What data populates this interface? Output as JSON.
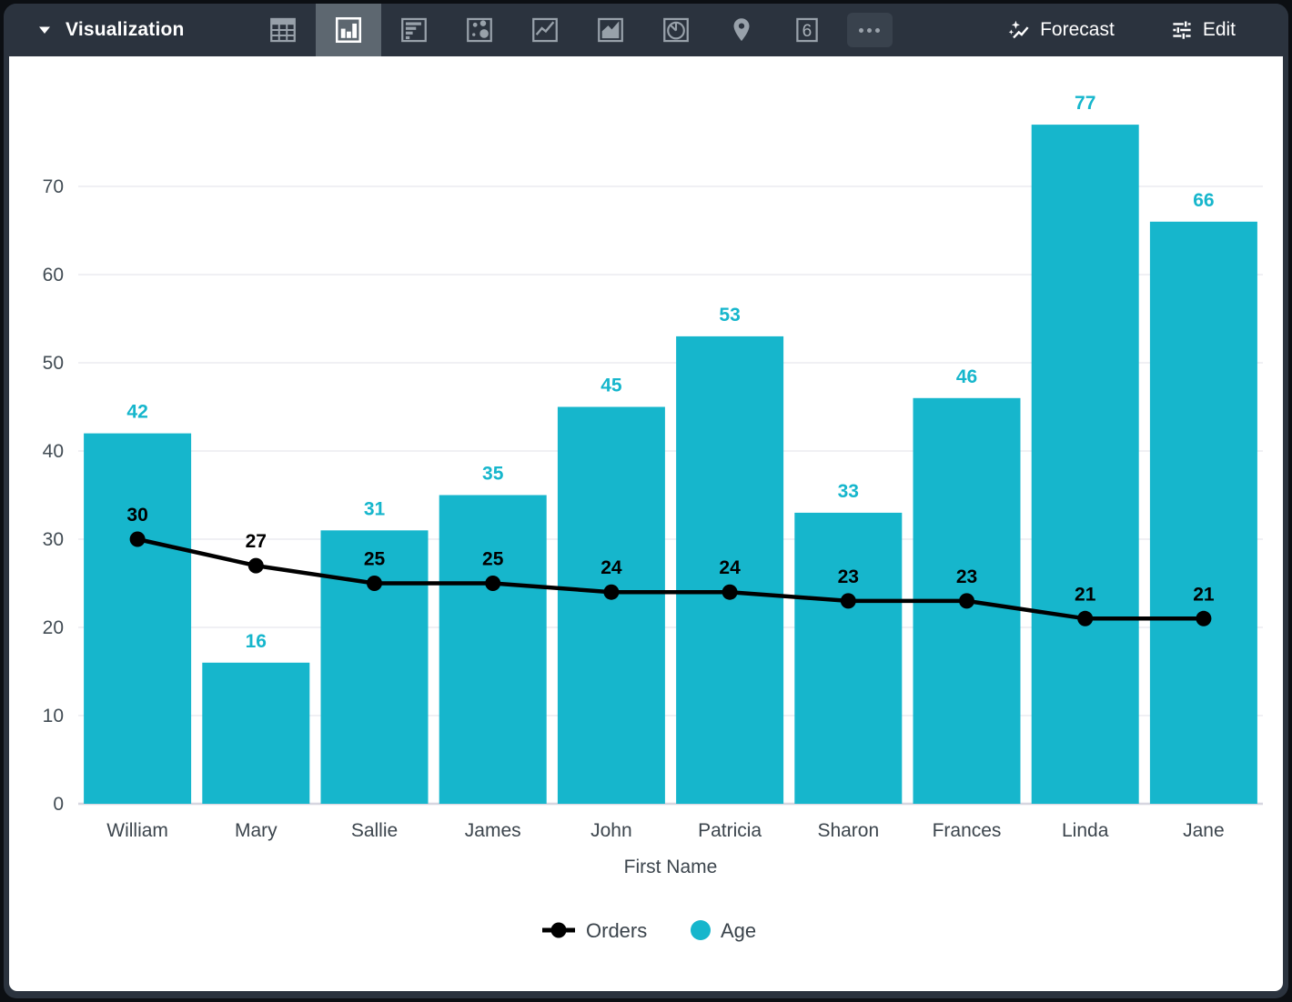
{
  "toolbar": {
    "title": "Visualization",
    "chart_type_icons": [
      "table",
      "column",
      "bar",
      "scatter",
      "line",
      "area",
      "pie",
      "map",
      "single-value",
      "more"
    ],
    "selected_chart_type": "column",
    "single_value_glyph": "6",
    "forecast_label": "Forecast",
    "edit_label": "Edit"
  },
  "colors": {
    "toolbar_bg": "#2b333e",
    "selected_tool_bg": "#5d6770",
    "bar_teal": "#16b6cc",
    "line_black": "#000000",
    "grid_line": "#ebebf0",
    "axis_line": "#d6d6e0",
    "tick_text": "#424c54"
  },
  "chart_data": {
    "type": "combo-bar-line",
    "categories": [
      "William",
      "Mary",
      "Sallie",
      "James",
      "John",
      "Patricia",
      "Sharon",
      "Frances",
      "Linda",
      "Jane"
    ],
    "series": [
      {
        "name": "Orders",
        "type": "line",
        "color": "#000000",
        "values": [
          30,
          27,
          25,
          25,
          24,
          24,
          23,
          23,
          21,
          21
        ]
      },
      {
        "name": "Age",
        "type": "bar",
        "color": "#16b6cc",
        "values": [
          42,
          16,
          31,
          35,
          45,
          53,
          33,
          46,
          77,
          66
        ]
      }
    ],
    "xlabel": "First Name",
    "yticks": [
      0,
      10,
      20,
      30,
      40,
      50,
      60,
      70
    ],
    "ylim": [
      0,
      80
    ],
    "grid": true,
    "value_labels": true,
    "legend_position": "bottom"
  }
}
